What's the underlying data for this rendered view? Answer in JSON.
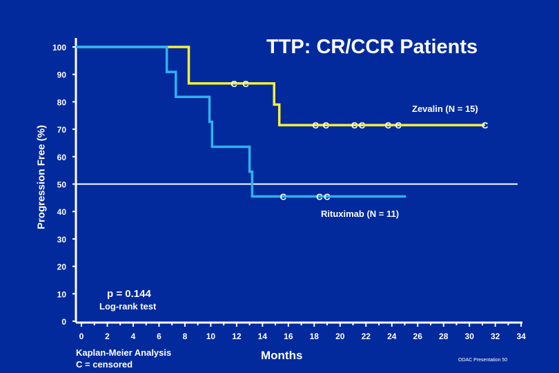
{
  "chart_data": {
    "type": "line",
    "subtype": "kaplan-meier step",
    "title": "TTP:  CR/CCR Patients",
    "xlabel": "Months",
    "ylabel": "Progression Free (%)",
    "xlim": [
      0,
      34
    ],
    "ylim": [
      0,
      100
    ],
    "xticks": [
      0,
      2,
      4,
      6,
      8,
      10,
      12,
      14,
      16,
      18,
      20,
      22,
      24,
      26,
      28,
      30,
      32,
      34
    ],
    "yticks": [
      0,
      10,
      20,
      30,
      40,
      50,
      60,
      70,
      80,
      90,
      100
    ],
    "grid": false,
    "reference_line_y": 50,
    "series": [
      {
        "name": "Zevalin (N = 15)",
        "color": "#f5f03a",
        "steps": [
          [
            0,
            100
          ],
          [
            8.3,
            86.7
          ],
          [
            14.9,
            79
          ],
          [
            15.3,
            71.5
          ]
        ],
        "end": 31.2,
        "censored": [
          11.8,
          12.7,
          18.1,
          18.9,
          21.1,
          21.5,
          23.7,
          24.5,
          31.2
        ]
      },
      {
        "name": "Rituximab (N = 11)",
        "color": "#2fb2f0",
        "steps": [
          [
            0,
            100
          ],
          [
            6.6,
            90.9
          ],
          [
            7.3,
            81.8
          ],
          [
            9.9,
            72.7
          ],
          [
            10.1,
            63.6
          ],
          [
            13.0,
            54.5
          ],
          [
            13.2,
            45.5
          ]
        ],
        "end": 25.1,
        "censored": [
          15.6,
          18.4,
          18.5
        ]
      }
    ],
    "censor_marker": "C",
    "annotations": {
      "p_value": "p = 0.144",
      "test": "Log-rank test"
    }
  },
  "footer": {
    "method": "Kaplan-Meier Analysis",
    "censor_note": "C = censored",
    "source": "ODAC Presentation  50"
  }
}
